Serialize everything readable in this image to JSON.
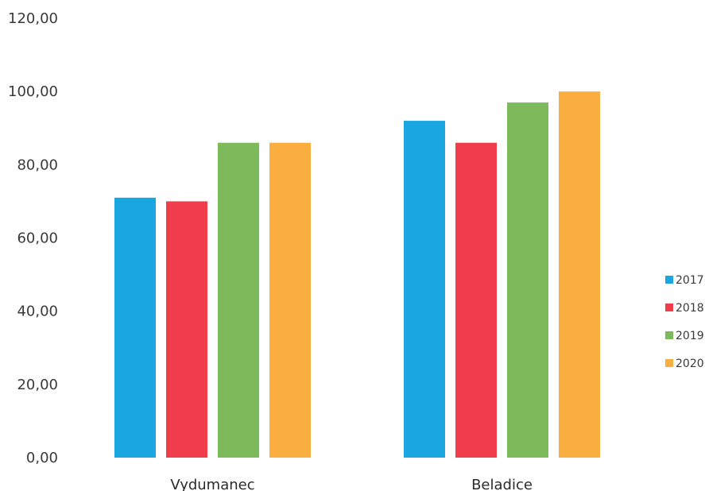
{
  "chart_data": {
    "type": "bar",
    "categories": [
      "Vydumanec",
      "Beladice"
    ],
    "series": [
      {
        "name": "2017",
        "color": "#1aa6e0",
        "values": [
          71,
          92
        ]
      },
      {
        "name": "2018",
        "color": "#ef3d4b",
        "values": [
          70,
          86
        ]
      },
      {
        "name": "2019",
        "color": "#7cba5c",
        "values": [
          86,
          97
        ]
      },
      {
        "name": "2020",
        "color": "#fbae40",
        "values": [
          86,
          100
        ]
      }
    ],
    "yticks": [
      "0,00",
      "20,00",
      "40,00",
      "60,00",
      "80,00",
      "100,00",
      "120,00"
    ],
    "ylim": [
      0,
      120
    ],
    "grid": false,
    "legend_position": "right"
  }
}
